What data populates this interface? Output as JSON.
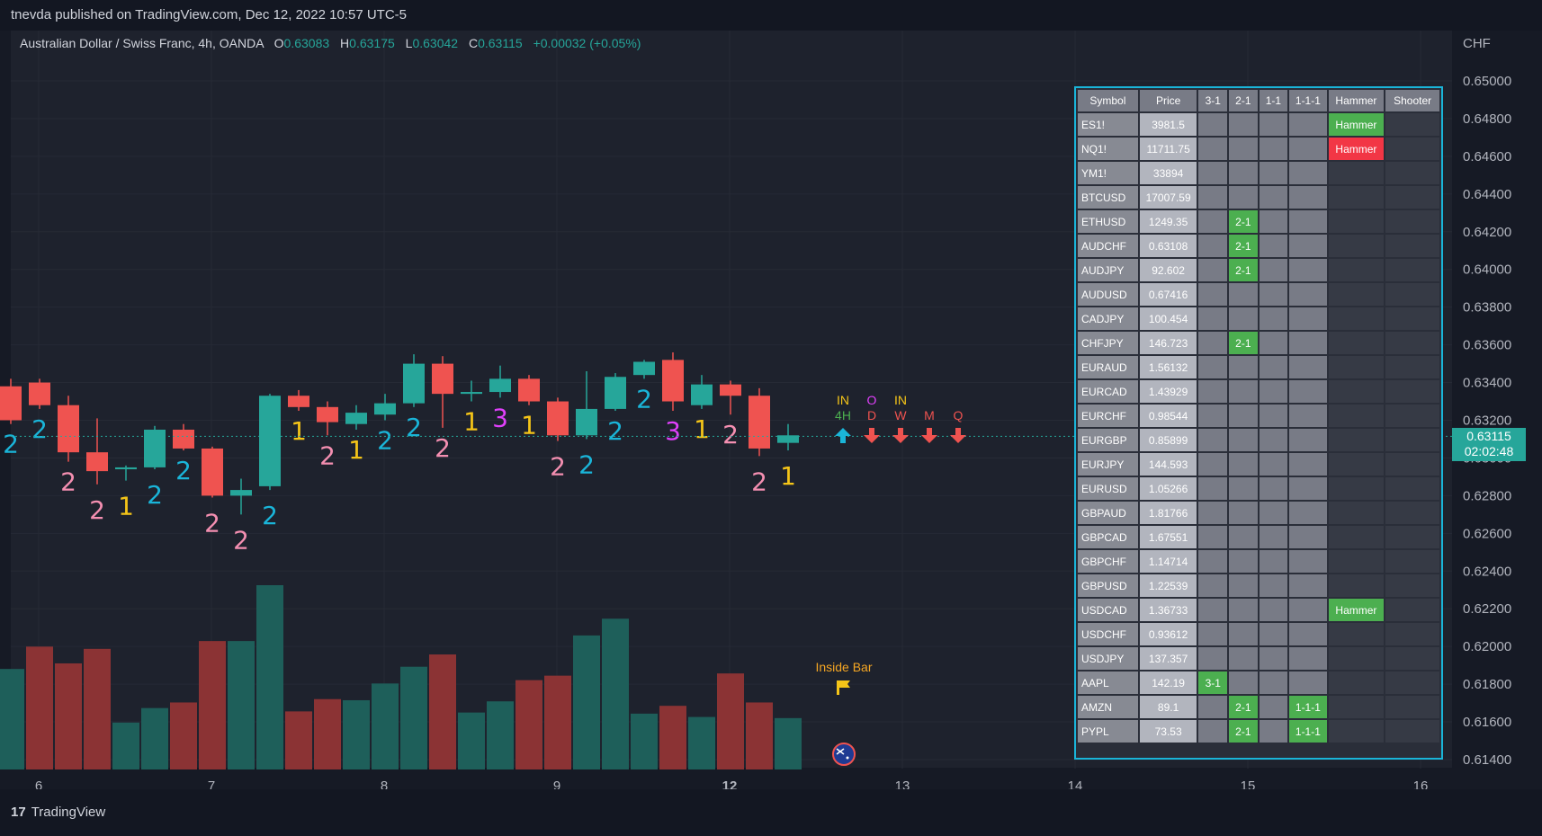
{
  "header": {
    "publisher": "tnevda published on TradingView.com, Dec 12, 2022 10:57 UTC-5"
  },
  "symbol_info": {
    "name": "Australian Dollar / Swiss Franc, 4h, OANDA",
    "o_label": "O",
    "o": "0.63083",
    "h_label": "H",
    "h": "0.63175",
    "l_label": "L",
    "l": "0.63042",
    "c_label": "C",
    "c": "0.63115",
    "change": "+0.00032 (+0.05%)"
  },
  "price_scale": {
    "currency": "CHF",
    "labels": [
      "0.65000",
      "0.64800",
      "0.64600",
      "0.64400",
      "0.64200",
      "0.64000",
      "0.63800",
      "0.63600",
      "0.63400",
      "0.63200",
      "0.63000",
      "0.62800",
      "0.62600",
      "0.62400",
      "0.62200",
      "0.62000",
      "0.61800",
      "0.61600",
      "0.61400"
    ]
  },
  "last_price": {
    "price": "0.63115",
    "countdown": "02:02:48"
  },
  "time_axis": [
    "6",
    "7",
    "8",
    "9",
    "12",
    "13",
    "14",
    "15",
    "16"
  ],
  "timeframe_signals": {
    "col_4h": {
      "top": "IN",
      "bottom": "4H"
    },
    "col_d": {
      "top": "O",
      "bottom": "D"
    },
    "col_w": {
      "top": "IN",
      "bottom": "W"
    },
    "col_m": {
      "bottom": "M"
    },
    "col_q": {
      "bottom": "Q"
    }
  },
  "inside_bar_label": "Inside Bar",
  "colors": {
    "bull": "#26a69a",
    "bear": "#ef5350",
    "vol_bull": "#1e5f5a",
    "vol_bear": "#8b3334",
    "accent": "#1ab5d9"
  },
  "chart_data": {
    "type": "candlestick",
    "x_ticks": [
      "6",
      "7",
      "8",
      "9",
      "12",
      "13",
      "14",
      "15",
      "16"
    ],
    "ylim": [
      0.614,
      0.65
    ],
    "candles": [
      {
        "o": 0.6338,
        "h": 0.6342,
        "l": 0.6318,
        "c": 0.632
      },
      {
        "o": 0.634,
        "h": 0.6342,
        "l": 0.6326,
        "c": 0.6328
      },
      {
        "o": 0.6328,
        "h": 0.6333,
        "l": 0.6298,
        "c": 0.6303
      },
      {
        "o": 0.6303,
        "h": 0.6321,
        "l": 0.6286,
        "c": 0.6293
      },
      {
        "o": 0.6294,
        "h": 0.6296,
        "l": 0.6288,
        "c": 0.6295
      },
      {
        "o": 0.6295,
        "h": 0.6317,
        "l": 0.6294,
        "c": 0.6315
      },
      {
        "o": 0.6315,
        "h": 0.6318,
        "l": 0.6304,
        "c": 0.6305
      },
      {
        "o": 0.6305,
        "h": 0.6306,
        "l": 0.6279,
        "c": 0.628
      },
      {
        "o": 0.628,
        "h": 0.6289,
        "l": 0.627,
        "c": 0.6283
      },
      {
        "o": 0.6285,
        "h": 0.6334,
        "l": 0.6283,
        "c": 0.6333
      },
      {
        "o": 0.6333,
        "h": 0.6336,
        "l": 0.6325,
        "c": 0.6327
      },
      {
        "o": 0.6327,
        "h": 0.633,
        "l": 0.6312,
        "c": 0.6319
      },
      {
        "o": 0.6318,
        "h": 0.6328,
        "l": 0.6315,
        "c": 0.6324
      },
      {
        "o": 0.6323,
        "h": 0.6334,
        "l": 0.632,
        "c": 0.6329
      },
      {
        "o": 0.6329,
        "h": 0.6355,
        "l": 0.6327,
        "c": 0.635
      },
      {
        "o": 0.635,
        "h": 0.6354,
        "l": 0.6316,
        "c": 0.6334
      },
      {
        "o": 0.6334,
        "h": 0.6341,
        "l": 0.633,
        "c": 0.6335
      },
      {
        "o": 0.6335,
        "h": 0.6349,
        "l": 0.6332,
        "c": 0.6342
      },
      {
        "o": 0.6342,
        "h": 0.6344,
        "l": 0.6328,
        "c": 0.633
      },
      {
        "o": 0.633,
        "h": 0.6332,
        "l": 0.6309,
        "c": 0.6312
      },
      {
        "o": 0.6312,
        "h": 0.6346,
        "l": 0.631,
        "c": 0.6326
      },
      {
        "o": 0.6326,
        "h": 0.6345,
        "l": 0.6325,
        "c": 0.6343
      },
      {
        "o": 0.6344,
        "h": 0.6352,
        "l": 0.6342,
        "c": 0.6351
      },
      {
        "o": 0.6352,
        "h": 0.6356,
        "l": 0.6325,
        "c": 0.633
      },
      {
        "o": 0.6328,
        "h": 0.6344,
        "l": 0.6326,
        "c": 0.6339
      },
      {
        "o": 0.6339,
        "h": 0.6341,
        "l": 0.6323,
        "c": 0.6333
      },
      {
        "o": 0.6333,
        "h": 0.6337,
        "l": 0.6301,
        "c": 0.6305
      },
      {
        "o": 0.6308,
        "h": 0.6318,
        "l": 0.6304,
        "c": 0.6312
      }
    ],
    "volumes": [
      {
        "v": 90,
        "bull": true
      },
      {
        "v": 110,
        "bull": false
      },
      {
        "v": 95,
        "bull": false
      },
      {
        "v": 108,
        "bull": false
      },
      {
        "v": 42,
        "bull": true
      },
      {
        "v": 55,
        "bull": true
      },
      {
        "v": 60,
        "bull": false
      },
      {
        "v": 115,
        "bull": false
      },
      {
        "v": 115,
        "bull": true
      },
      {
        "v": 165,
        "bull": true
      },
      {
        "v": 52,
        "bull": false
      },
      {
        "v": 63,
        "bull": false
      },
      {
        "v": 62,
        "bull": true
      },
      {
        "v": 77,
        "bull": true
      },
      {
        "v": 92,
        "bull": true
      },
      {
        "v": 103,
        "bull": false
      },
      {
        "v": 51,
        "bull": true
      },
      {
        "v": 61,
        "bull": true
      },
      {
        "v": 80,
        "bull": false
      },
      {
        "v": 84,
        "bull": false
      },
      {
        "v": 120,
        "bull": true
      },
      {
        "v": 135,
        "bull": true
      },
      {
        "v": 50,
        "bull": true
      },
      {
        "v": 57,
        "bull": false
      },
      {
        "v": 47,
        "bull": true
      },
      {
        "v": 86,
        "bull": false
      },
      {
        "v": 60,
        "bull": false
      },
      {
        "v": 46,
        "bull": true
      }
    ],
    "bar_labels": [
      {
        "i": 0,
        "pos": "below",
        "t": "2",
        "c": "#1ab5d9"
      },
      {
        "i": 1,
        "pos": "below",
        "t": "2",
        "c": "#1ab5d9"
      },
      {
        "i": 2,
        "pos": "below",
        "t": "2",
        "c": "#f48fb1"
      },
      {
        "i": 3,
        "pos": "below2",
        "t": "2",
        "c": "#f48fb1"
      },
      {
        "i": 4,
        "pos": "below2",
        "t": "1",
        "c": "#f5c518"
      },
      {
        "i": 5,
        "pos": "below2",
        "t": "2",
        "c": "#1ab5d9"
      },
      {
        "i": 6,
        "pos": "below",
        "t": "2",
        "c": "#1ab5d9"
      },
      {
        "i": 7,
        "pos": "below2",
        "t": "2",
        "c": "#f48fb1"
      },
      {
        "i": 8,
        "pos": "below2",
        "t": "2",
        "c": "#f48fb1"
      },
      {
        "i": 9,
        "pos": "below2",
        "t": "2",
        "c": "#1ab5d9"
      },
      {
        "i": 10,
        "pos": "below",
        "t": "1",
        "c": "#f5c518"
      },
      {
        "i": 11,
        "pos": "below",
        "t": "2",
        "c": "#f48fb1"
      },
      {
        "i": 12,
        "pos": "below",
        "t": "1",
        "c": "#f5c518"
      },
      {
        "i": 13,
        "pos": "below",
        "t": "2",
        "c": "#1ab5d9"
      },
      {
        "i": 14,
        "pos": "below",
        "t": "2",
        "c": "#1ab5d9"
      },
      {
        "i": 15,
        "pos": "below",
        "t": "2",
        "c": "#f48fb1"
      },
      {
        "i": 16,
        "pos": "below",
        "t": "1",
        "c": "#f5c518"
      },
      {
        "i": 17,
        "pos": "below",
        "t": "3",
        "c": "#e040fb"
      },
      {
        "i": 18,
        "pos": "below",
        "t": "1",
        "c": "#f5c518"
      },
      {
        "i": 19,
        "pos": "below2",
        "t": "2",
        "c": "#f48fb1"
      },
      {
        "i": 20,
        "pos": "below2",
        "t": "2",
        "c": "#1ab5d9"
      },
      {
        "i": 21,
        "pos": "below",
        "t": "2",
        "c": "#1ab5d9"
      },
      {
        "i": 22,
        "pos": "below",
        "t": "2",
        "c": "#1ab5d9"
      },
      {
        "i": 23,
        "pos": "below",
        "t": "3",
        "c": "#e040fb"
      },
      {
        "i": 24,
        "pos": "below",
        "t": "1",
        "c": "#f5c518"
      },
      {
        "i": 25,
        "pos": "below",
        "t": "2",
        "c": "#f48fb1"
      },
      {
        "i": 26,
        "pos": "below2",
        "t": "2",
        "c": "#f48fb1"
      },
      {
        "i": 27,
        "pos": "below2",
        "t": "1",
        "c": "#f5c518"
      }
    ]
  },
  "screener": {
    "headers": [
      "Symbol",
      "Price",
      "3-1",
      "2-1",
      "1-1",
      "1-1-1",
      "Hammer",
      "Shooter"
    ],
    "rows": [
      {
        "s": "ES1!",
        "p": "3981.5",
        "c31": "",
        "c21": "",
        "c11": "",
        "c111": "",
        "ham": "Hammer",
        "hamc": "g",
        "sho": ""
      },
      {
        "s": "NQ1!",
        "p": "11711.75",
        "c31": "",
        "c21": "",
        "c11": "",
        "c111": "",
        "ham": "Hammer",
        "hamc": "r",
        "sho": ""
      },
      {
        "s": "YM1!",
        "p": "33894",
        "c31": "",
        "c21": "",
        "c11": "",
        "c111": "",
        "ham": "",
        "hamc": "",
        "sho": ""
      },
      {
        "s": "BTCUSD",
        "p": "17007.59",
        "c31": "",
        "c21": "",
        "c11": "",
        "c111": "",
        "ham": "",
        "hamc": "",
        "sho": ""
      },
      {
        "s": "ETHUSD",
        "p": "1249.35",
        "c31": "",
        "c21": "2-1",
        "c11": "",
        "c111": "",
        "ham": "",
        "hamc": "",
        "sho": ""
      },
      {
        "s": "AUDCHF",
        "p": "0.63108",
        "c31": "",
        "c21": "2-1",
        "c11": "",
        "c111": "",
        "ham": "",
        "hamc": "",
        "sho": ""
      },
      {
        "s": "AUDJPY",
        "p": "92.602",
        "c31": "",
        "c21": "2-1",
        "c11": "",
        "c111": "",
        "ham": "",
        "hamc": "",
        "sho": ""
      },
      {
        "s": "AUDUSD",
        "p": "0.67416",
        "c31": "",
        "c21": "",
        "c11": "",
        "c111": "",
        "ham": "",
        "hamc": "",
        "sho": ""
      },
      {
        "s": "CADJPY",
        "p": "100.454",
        "c31": "",
        "c21": "",
        "c11": "",
        "c111": "",
        "ham": "",
        "hamc": "",
        "sho": ""
      },
      {
        "s": "CHFJPY",
        "p": "146.723",
        "c31": "",
        "c21": "2-1",
        "c11": "",
        "c111": "",
        "ham": "",
        "hamc": "",
        "sho": ""
      },
      {
        "s": "EURAUD",
        "p": "1.56132",
        "c31": "",
        "c21": "",
        "c11": "",
        "c111": "",
        "ham": "",
        "hamc": "",
        "sho": ""
      },
      {
        "s": "EURCAD",
        "p": "1.43929",
        "c31": "",
        "c21": "",
        "c11": "",
        "c111": "",
        "ham": "",
        "hamc": "",
        "sho": ""
      },
      {
        "s": "EURCHF",
        "p": "0.98544",
        "c31": "",
        "c21": "",
        "c11": "",
        "c111": "",
        "ham": "",
        "hamc": "",
        "sho": ""
      },
      {
        "s": "EURGBP",
        "p": "0.85899",
        "c31": "",
        "c21": "",
        "c11": "",
        "c111": "",
        "ham": "",
        "hamc": "",
        "sho": ""
      },
      {
        "s": "EURJPY",
        "p": "144.593",
        "c31": "",
        "c21": "",
        "c11": "",
        "c111": "",
        "ham": "",
        "hamc": "",
        "sho": ""
      },
      {
        "s": "EURUSD",
        "p": "1.05266",
        "c31": "",
        "c21": "",
        "c11": "",
        "c111": "",
        "ham": "",
        "hamc": "",
        "sho": ""
      },
      {
        "s": "GBPAUD",
        "p": "1.81766",
        "c31": "",
        "c21": "",
        "c11": "",
        "c111": "",
        "ham": "",
        "hamc": "",
        "sho": ""
      },
      {
        "s": "GBPCAD",
        "p": "1.67551",
        "c31": "",
        "c21": "",
        "c11": "",
        "c111": "",
        "ham": "",
        "hamc": "",
        "sho": ""
      },
      {
        "s": "GBPCHF",
        "p": "1.14714",
        "c31": "",
        "c21": "",
        "c11": "",
        "c111": "",
        "ham": "",
        "hamc": "",
        "sho": ""
      },
      {
        "s": "GBPUSD",
        "p": "1.22539",
        "c31": "",
        "c21": "",
        "c11": "",
        "c111": "",
        "ham": "",
        "hamc": "",
        "sho": ""
      },
      {
        "s": "USDCAD",
        "p": "1.36733",
        "c31": "",
        "c21": "",
        "c11": "",
        "c111": "",
        "ham": "Hammer",
        "hamc": "g",
        "sho": ""
      },
      {
        "s": "USDCHF",
        "p": "0.93612",
        "c31": "",
        "c21": "",
        "c11": "",
        "c111": "",
        "ham": "",
        "hamc": "",
        "sho": ""
      },
      {
        "s": "USDJPY",
        "p": "137.357",
        "c31": "",
        "c21": "",
        "c11": "",
        "c111": "",
        "ham": "",
        "hamc": "",
        "sho": ""
      },
      {
        "s": "AAPL",
        "p": "142.19",
        "c31": "3-1",
        "c21": "",
        "c11": "",
        "c111": "",
        "ham": "",
        "hamc": "",
        "sho": ""
      },
      {
        "s": "AMZN",
        "p": "89.1",
        "c31": "",
        "c21": "2-1",
        "c11": "",
        "c111": "1-1-1",
        "ham": "",
        "hamc": "",
        "sho": ""
      },
      {
        "s": "PYPL",
        "p": "73.53",
        "c31": "",
        "c21": "2-1",
        "c11": "",
        "c111": "1-1-1",
        "ham": "",
        "hamc": "",
        "sho": ""
      }
    ]
  },
  "footer": {
    "brand": "TradingView"
  }
}
